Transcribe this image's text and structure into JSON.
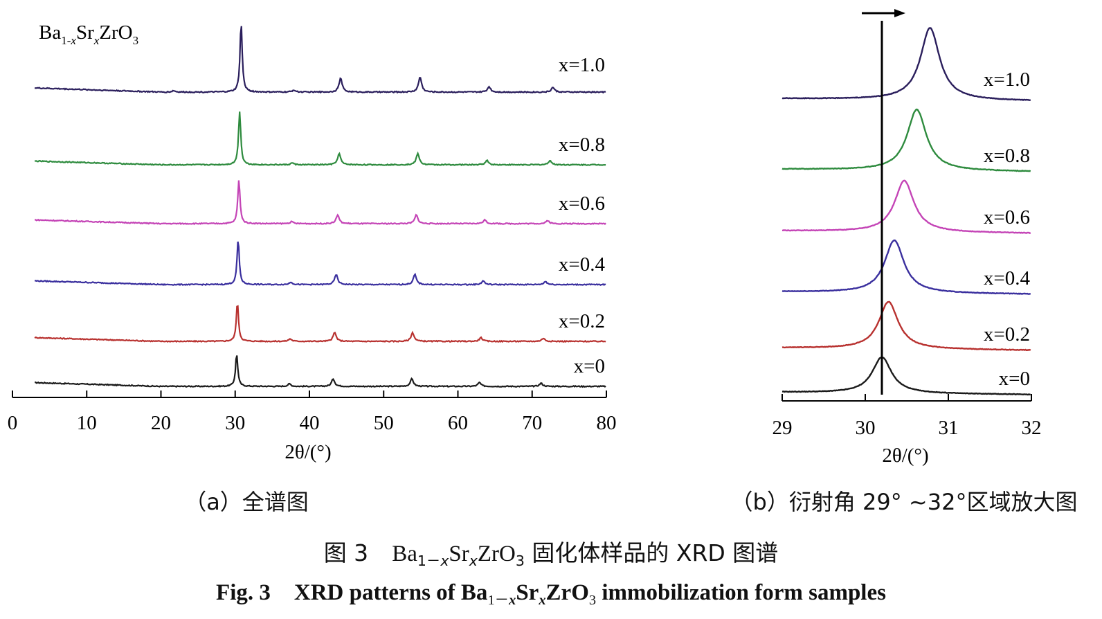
{
  "panel_a": {
    "compound_label": {
      "base1": "Ba",
      "sub1": "1-",
      "sub1_var": "x",
      "base2": "Sr",
      "sub2_var": "x",
      "base3": "ZrO",
      "sub3": "3"
    },
    "caption": "（a）全谱图"
  },
  "panel_b": {
    "caption": "（b）衍射角 29° ~32°区域放大图"
  },
  "caption_cn": {
    "prefix": "图 3",
    "base1": "Ba",
    "sub1": "1－",
    "sub1_var": "x",
    "base2": "Sr",
    "sub2_var": "x",
    "base3": "ZrO",
    "sub3": "3",
    "suffix": "固化体样品的 XRD 图谱"
  },
  "caption_en": {
    "prefix": "Fig. 3",
    "text1": "XRD patterns of Ba",
    "sub1": "1－",
    "sub1_var": "x",
    "base2": "Sr",
    "sub2_var": "x",
    "base3": "ZrO",
    "sub3": "3",
    "suffix": "immobilization form samples"
  },
  "chart_data": [
    {
      "type": "line",
      "x_label": "2θ/(°)",
      "xlim": [
        0,
        80
      ],
      "x_ticks": [
        "0",
        "10",
        "20",
        "30",
        "40",
        "50",
        "60",
        "70",
        "80"
      ],
      "y_axis_shown": false,
      "data_range": [
        3,
        80
      ],
      "peaks_description": "stacked XRD patterns; main peak near 30.2–30.8, minor peaks near 37, 43, 54, 63, 71",
      "series": [
        {
          "name": "x=0",
          "color": "#1a1a1a",
          "peaks": [
            [
              30.2,
              52
            ],
            [
              37.3,
              4
            ],
            [
              43.2,
              12
            ],
            [
              53.8,
              12
            ],
            [
              62.9,
              6
            ],
            [
              71.2,
              5
            ]
          ]
        },
        {
          "name": "x=0.2",
          "color": "#b8312f",
          "peaks": [
            [
              30.3,
              62
            ],
            [
              37.4,
              4
            ],
            [
              43.4,
              14
            ],
            [
              53.9,
              14
            ],
            [
              63.1,
              6
            ],
            [
              71.5,
              5
            ]
          ]
        },
        {
          "name": "x=0.4",
          "color": "#3a2f9e",
          "peaks": [
            [
              30.4,
              72
            ],
            [
              37.5,
              4
            ],
            [
              43.6,
              16
            ],
            [
              54.2,
              16
            ],
            [
              63.4,
              6
            ],
            [
              71.8,
              5
            ]
          ]
        },
        {
          "name": "x=0.6",
          "color": "#c444b6",
          "peaks": [
            [
              30.5,
              70
            ],
            [
              37.6,
              3
            ],
            [
              43.8,
              14
            ],
            [
              54.4,
              14
            ],
            [
              63.6,
              6
            ],
            [
              72.1,
              5
            ]
          ]
        },
        {
          "name": "x=0.8",
          "color": "#2e8b3e",
          "peaks": [
            [
              30.6,
              86
            ],
            [
              37.7,
              3
            ],
            [
              44.0,
              18
            ],
            [
              54.6,
              18
            ],
            [
              63.9,
              7
            ],
            [
              72.4,
              7
            ]
          ]
        },
        {
          "name": "x=1.0",
          "color": "#2a1e5c",
          "peaks": [
            [
              21.7,
              2
            ],
            [
              30.8,
              100
            ],
            [
              37.9,
              3
            ],
            [
              44.2,
              20
            ],
            [
              54.9,
              22
            ],
            [
              64.2,
              8
            ],
            [
              72.8,
              7
            ]
          ]
        }
      ]
    },
    {
      "type": "line",
      "x_label": "2θ/(°)",
      "xlim": [
        29,
        32
      ],
      "x_ticks": [
        "29",
        "30",
        "31",
        "32"
      ],
      "y_axis_shown": false,
      "reference_line_x": 30.2,
      "arrow_direction": "right",
      "series": [
        {
          "name": "x=0",
          "color": "#1a1a1a",
          "peak_x": 30.2,
          "height": 52
        },
        {
          "name": "x=0.2",
          "color": "#b8312f",
          "peak_x": 30.28,
          "height": 68
        },
        {
          "name": "x=0.4",
          "color": "#3a2f9e",
          "peak_x": 30.35,
          "height": 76
        },
        {
          "name": "x=0.6",
          "color": "#c444b6",
          "peak_x": 30.47,
          "height": 74
        },
        {
          "name": "x=0.8",
          "color": "#2e8b3e",
          "peak_x": 30.62,
          "height": 88
        },
        {
          "name": "x=1.0",
          "color": "#2a1e5c",
          "peak_x": 30.78,
          "height": 104
        }
      ]
    }
  ]
}
